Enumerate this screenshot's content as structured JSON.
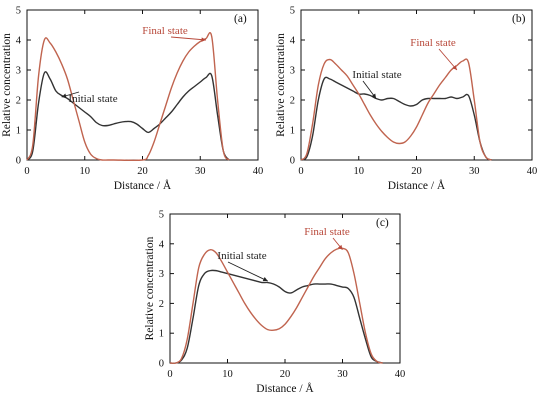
{
  "colors": {
    "initial": "#333333",
    "final": "#c0644f",
    "final_label": "#b8483a",
    "axis": "#111111"
  },
  "chart_data": [
    {
      "type": "line",
      "panel_label": "(a)",
      "xlabel": "Distance / Å",
      "ylabel": "Relative concentration",
      "xlim": [
        0,
        40
      ],
      "ylim": [
        0,
        5
      ],
      "xticks": [
        "0",
        "10",
        "20",
        "30",
        "40"
      ],
      "yticks": [
        "0",
        "1",
        "2",
        "3",
        "4",
        "5"
      ],
      "grid": false,
      "annotations": [
        {
          "text": "Final state",
          "series": "final",
          "target": [
            31,
            4.0
          ]
        },
        {
          "text": "Initial state",
          "series": "initial",
          "target": [
            6,
            2.1
          ]
        }
      ],
      "series": [
        {
          "key": "initial",
          "name": "Initial state",
          "x": [
            0,
            1,
            2,
            3,
            4,
            5,
            6,
            7,
            8,
            9,
            10,
            11,
            12,
            13,
            14,
            15,
            16,
            17,
            18,
            19,
            20,
            21,
            22,
            23,
            24,
            25,
            26,
            27,
            28,
            29,
            30,
            31,
            32,
            33,
            34,
            35
          ],
          "y": [
            0,
            0.3,
            1.9,
            2.9,
            2.7,
            2.3,
            2.15,
            2.05,
            1.9,
            1.75,
            1.6,
            1.45,
            1.25,
            1.15,
            1.15,
            1.2,
            1.25,
            1.28,
            1.28,
            1.2,
            1.05,
            0.92,
            1.05,
            1.2,
            1.4,
            1.6,
            1.85,
            2.1,
            2.3,
            2.45,
            2.6,
            2.75,
            2.8,
            1.5,
            0.3,
            0
          ]
        },
        {
          "key": "final",
          "name": "Final state",
          "x": [
            0,
            1,
            2,
            3,
            4,
            5,
            6,
            7,
            8,
            9,
            10,
            11,
            12,
            13,
            14,
            15,
            20,
            21,
            22,
            23,
            24,
            25,
            26,
            27,
            28,
            29,
            30,
            31,
            32,
            33,
            34,
            35
          ],
          "y": [
            0,
            0.5,
            2.8,
            4.0,
            3.9,
            3.6,
            3.2,
            2.7,
            2.0,
            1.3,
            0.6,
            0.2,
            0.05,
            0,
            0,
            0,
            0,
            0.15,
            0.6,
            1.2,
            1.8,
            2.4,
            2.9,
            3.3,
            3.6,
            3.8,
            3.95,
            4.05,
            4.1,
            2.0,
            0.3,
            0
          ]
        }
      ]
    },
    {
      "type": "line",
      "panel_label": "(b)",
      "xlabel": "Distance / Å",
      "ylabel": "Relative concentration",
      "xlim": [
        0,
        40
      ],
      "ylim": [
        0,
        5
      ],
      "xticks": [
        "0",
        "10",
        "20",
        "30",
        "40"
      ],
      "yticks": [
        "0",
        "1",
        "2",
        "3",
        "4",
        "5"
      ],
      "grid": false,
      "annotations": [
        {
          "text": "Final state",
          "series": "final",
          "target": [
            27,
            3.0
          ]
        },
        {
          "text": "Initial state",
          "series": "initial",
          "target": [
            13,
            2.05
          ]
        }
      ],
      "series": [
        {
          "key": "initial",
          "name": "Initial state",
          "x": [
            0,
            1,
            2,
            3,
            4,
            5,
            6,
            7,
            8,
            9,
            10,
            11,
            12,
            13,
            14,
            15,
            16,
            17,
            18,
            19,
            20,
            21,
            22,
            23,
            24,
            25,
            26,
            27,
            28,
            29,
            30,
            31,
            32,
            33
          ],
          "y": [
            0,
            0.1,
            0.8,
            2.0,
            2.7,
            2.7,
            2.6,
            2.5,
            2.4,
            2.3,
            2.2,
            2.2,
            2.15,
            2.05,
            2.0,
            2.05,
            2.05,
            1.95,
            1.85,
            1.8,
            1.85,
            2.0,
            2.05,
            2.05,
            2.05,
            2.05,
            2.1,
            2.05,
            2.1,
            2.15,
            1.5,
            0.6,
            0.1,
            0
          ]
        },
        {
          "key": "final",
          "name": "Final state",
          "x": [
            0,
            1,
            2,
            3,
            4,
            5,
            6,
            7,
            8,
            9,
            10,
            11,
            12,
            13,
            14,
            15,
            16,
            17,
            18,
            19,
            20,
            21,
            22,
            23,
            24,
            25,
            26,
            27,
            28,
            29,
            30,
            31,
            32,
            33
          ],
          "y": [
            0,
            0.2,
            1.2,
            2.5,
            3.2,
            3.35,
            3.2,
            3.0,
            2.8,
            2.5,
            2.2,
            1.85,
            1.5,
            1.2,
            0.95,
            0.75,
            0.6,
            0.55,
            0.6,
            0.8,
            1.1,
            1.5,
            1.9,
            2.2,
            2.5,
            2.75,
            3.0,
            3.15,
            3.3,
            3.25,
            2.0,
            0.6,
            0.1,
            0
          ]
        }
      ]
    },
    {
      "type": "line",
      "panel_label": "(c)",
      "xlabel": "Distance / Å",
      "ylabel": "Relative concentration",
      "xlim": [
        0,
        40
      ],
      "ylim": [
        0,
        5
      ],
      "xticks": [
        "0",
        "10",
        "20",
        "30",
        "40"
      ],
      "yticks": [
        "0",
        "1",
        "2",
        "3",
        "4",
        "5"
      ],
      "grid": false,
      "annotations": [
        {
          "text": "Final state",
          "series": "final",
          "target": [
            30,
            3.8
          ]
        },
        {
          "text": "Initial state",
          "series": "initial",
          "target": [
            17,
            2.75
          ]
        }
      ],
      "series": [
        {
          "key": "initial",
          "name": "Initial state",
          "x": [
            0,
            1,
            2,
            3,
            4,
            5,
            6,
            7,
            8,
            9,
            10,
            11,
            12,
            13,
            14,
            15,
            16,
            17,
            18,
            19,
            20,
            21,
            22,
            23,
            24,
            25,
            26,
            27,
            28,
            29,
            30,
            31,
            32,
            33,
            34,
            35,
            36,
            37
          ],
          "y": [
            0,
            0,
            0.1,
            0.5,
            1.5,
            2.6,
            3.0,
            3.1,
            3.1,
            3.05,
            3.0,
            2.95,
            2.9,
            2.85,
            2.8,
            2.75,
            2.7,
            2.7,
            2.65,
            2.55,
            2.4,
            2.35,
            2.45,
            2.55,
            2.6,
            2.65,
            2.65,
            2.65,
            2.65,
            2.6,
            2.55,
            2.5,
            2.2,
            1.5,
            0.8,
            0.2,
            0.05,
            0
          ]
        },
        {
          "key": "final",
          "name": "Final state",
          "x": [
            0,
            1,
            2,
            3,
            4,
            5,
            6,
            7,
            8,
            9,
            10,
            11,
            12,
            13,
            14,
            15,
            16,
            17,
            18,
            19,
            20,
            21,
            22,
            23,
            24,
            25,
            26,
            27,
            28,
            29,
            30,
            31,
            32,
            33,
            34,
            35,
            36,
            37
          ],
          "y": [
            0,
            0,
            0.15,
            0.8,
            2.0,
            3.2,
            3.65,
            3.8,
            3.7,
            3.4,
            3.05,
            2.7,
            2.35,
            2.0,
            1.7,
            1.45,
            1.25,
            1.12,
            1.1,
            1.15,
            1.3,
            1.55,
            1.85,
            2.2,
            2.55,
            2.9,
            3.2,
            3.5,
            3.7,
            3.82,
            3.85,
            3.7,
            3.0,
            2.0,
            1.0,
            0.3,
            0.05,
            0
          ]
        }
      ]
    }
  ]
}
